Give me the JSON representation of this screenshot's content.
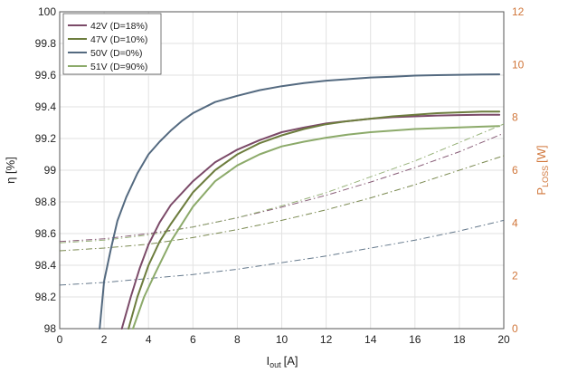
{
  "chart_data": {
    "type": "line",
    "xlabel": "I",
    "xlabel_sub": "out",
    "xlabel_unit": "[A]",
    "ylabel": "η [%]",
    "y2label": "P",
    "y2label_sub": "LOSS",
    "y2label_unit": "[W]",
    "xlim": [
      0,
      20
    ],
    "ylim": [
      98,
      100
    ],
    "y2lim": [
      0,
      12
    ],
    "xticks": [
      0,
      2,
      4,
      6,
      8,
      10,
      12,
      14,
      16,
      18,
      20
    ],
    "yticks": [
      "98",
      "98.2",
      "98.4",
      "98.6",
      "98.8",
      "99",
      "99.2",
      "99.4",
      "99.6",
      "99.8",
      "100"
    ],
    "y2ticks": [
      0,
      2,
      4,
      6,
      8,
      10,
      12
    ],
    "grid": true,
    "legend_position": "top-left",
    "colors": {
      "y2_axis": "#d0763a",
      "grid": "#e2e2e2",
      "axis": "#555555"
    },
    "series": [
      {
        "name": "42V (D=18%)",
        "color": "#7b4a68",
        "efficiency": {
          "x": [
            2.8,
            3.2,
            3.6,
            4,
            4.5,
            5,
            6,
            7,
            8,
            9,
            10,
            11,
            12,
            13,
            14,
            15,
            16,
            17,
            18,
            19,
            19.8
          ],
          "y": [
            98.0,
            98.2,
            98.38,
            98.53,
            98.67,
            98.78,
            98.93,
            99.05,
            99.13,
            99.19,
            99.24,
            99.27,
            99.295,
            99.31,
            99.325,
            99.335,
            99.34,
            99.345,
            99.348,
            99.35,
            99.35
          ]
        },
        "loss": {
          "x": [
            0,
            2,
            4,
            6,
            8,
            10,
            12,
            14,
            16,
            18,
            20
          ],
          "y": [
            3.3,
            3.4,
            3.6,
            3.85,
            4.2,
            4.6,
            5.05,
            5.55,
            6.1,
            6.7,
            7.4
          ]
        }
      },
      {
        "name": "47V (D=10%)",
        "color": "#6d7d3e",
        "efficiency": {
          "x": [
            3.1,
            3.5,
            4,
            4.5,
            5,
            6,
            7,
            8,
            9,
            10,
            11,
            12,
            13,
            14,
            15,
            16,
            17,
            18,
            19,
            19.8
          ],
          "y": [
            98.0,
            98.2,
            98.4,
            98.55,
            98.66,
            98.86,
            99.0,
            99.1,
            99.17,
            99.22,
            99.26,
            99.29,
            99.31,
            99.325,
            99.34,
            99.35,
            99.36,
            99.365,
            99.37,
            99.37
          ]
        },
        "loss": {
          "x": [
            0,
            2,
            4,
            6,
            8,
            10,
            12,
            14,
            16,
            18,
            20
          ],
          "y": [
            2.95,
            3.05,
            3.2,
            3.45,
            3.75,
            4.1,
            4.5,
            4.95,
            5.45,
            6.0,
            6.55
          ]
        }
      },
      {
        "name": "50V (D=0%)",
        "color": "#546a80",
        "efficiency": {
          "x": [
            1.8,
            2,
            2.3,
            2.6,
            3,
            3.5,
            4,
            4.5,
            5,
            5.5,
            6,
            7,
            8,
            9,
            10,
            11,
            12,
            13,
            14,
            15,
            16,
            17,
            18,
            19,
            19.8
          ],
          "y": [
            98.0,
            98.3,
            98.5,
            98.68,
            98.83,
            98.98,
            99.1,
            99.18,
            99.25,
            99.31,
            99.36,
            99.43,
            99.47,
            99.505,
            99.53,
            99.55,
            99.565,
            99.575,
            99.585,
            99.59,
            99.597,
            99.6,
            99.602,
            99.604,
            99.605
          ]
        },
        "loss": {
          "x": [
            0,
            2,
            4,
            6,
            8,
            10,
            12,
            14,
            16,
            18,
            20
          ],
          "y": [
            1.65,
            1.75,
            1.9,
            2.05,
            2.25,
            2.5,
            2.75,
            3.05,
            3.35,
            3.7,
            4.1
          ]
        }
      },
      {
        "name": "51V (D=90%)",
        "color": "#8caa6a",
        "efficiency": {
          "x": [
            3.3,
            3.8,
            4.3,
            5,
            6,
            7,
            8,
            9,
            10,
            11,
            12,
            13,
            14,
            15,
            16,
            17,
            18,
            19,
            19.8
          ],
          "y": [
            98.0,
            98.2,
            98.35,
            98.55,
            98.77,
            98.93,
            99.03,
            99.1,
            99.15,
            99.18,
            99.205,
            99.225,
            99.24,
            99.25,
            99.26,
            99.265,
            99.27,
            99.275,
            99.278
          ]
        },
        "loss": {
          "x": [
            0,
            2,
            4,
            6,
            8,
            10,
            12,
            14,
            16,
            18,
            20
          ],
          "y": [
            3.25,
            3.35,
            3.55,
            3.85,
            4.2,
            4.65,
            5.15,
            5.75,
            6.35,
            7.05,
            7.75
          ]
        }
      }
    ]
  }
}
